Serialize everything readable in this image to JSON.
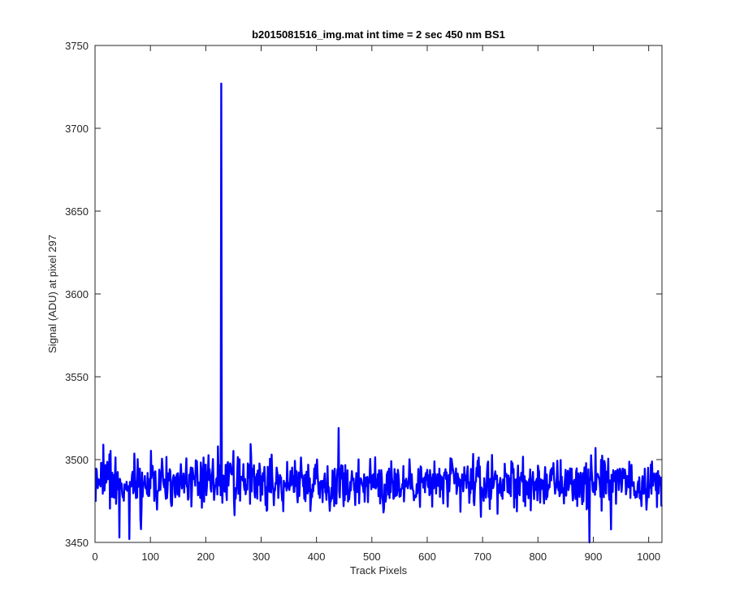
{
  "chart_data": {
    "type": "line",
    "title": "b2015081516_img.mat int time = 2 sec  450 nm BS1",
    "xlabel": "Track Pixels",
    "ylabel": "Signal (ADU) at pixel 297",
    "xlim": [
      0,
      1024
    ],
    "ylim": [
      3450,
      3750
    ],
    "xticks": [
      0,
      100,
      200,
      300,
      400,
      500,
      600,
      700,
      800,
      900,
      1000
    ],
    "yticks": [
      3450,
      3500,
      3550,
      3600,
      3650,
      3700,
      3750
    ],
    "grid": false,
    "legend": "none",
    "series_color": "#0000ff",
    "series": [
      {
        "baseline": 3486,
        "noise_amplitude": 7,
        "spikes": [
          {
            "x": 15,
            "y": 3509
          },
          {
            "x": 44,
            "y": 3453
          },
          {
            "x": 62,
            "y": 3452
          },
          {
            "x": 83,
            "y": 3458
          },
          {
            "x": 222,
            "y": 3508
          },
          {
            "x": 228,
            "y": 3727
          },
          {
            "x": 231,
            "y": 3490
          },
          {
            "x": 440,
            "y": 3519
          },
          {
            "x": 893,
            "y": 3450
          }
        ]
      }
    ]
  }
}
